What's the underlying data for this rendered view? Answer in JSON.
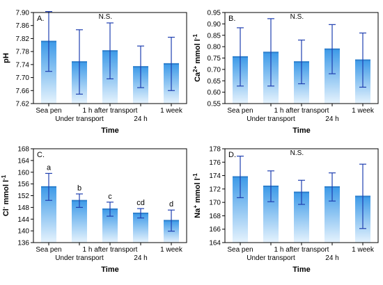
{
  "figure": {
    "x_categories": [
      "Sea pen",
      "Under transport",
      "1 h after transport",
      "24 h",
      "1 week"
    ],
    "xlabel": "Time"
  },
  "chart_data": [
    {
      "type": "bar",
      "panel_label": "A.",
      "annotation": "N.S.",
      "ylabel_main": "pH",
      "ylabel_sup": "",
      "ylabel_rest": "",
      "ylim": [
        7.62,
        7.9
      ],
      "yticks": [
        "7.62",
        "7.66",
        "7.70",
        "7.74",
        "7.78",
        "7.82",
        "7.86",
        "7.90"
      ],
      "categories": [
        "Sea pen",
        "Under transport",
        "1 h after transport",
        "24 h",
        "1 week"
      ],
      "values": [
        7.811,
        7.748,
        7.782,
        7.733,
        7.742
      ],
      "errors": [
        0.092,
        0.099,
        0.086,
        0.064,
        0.082
      ],
      "letters": []
    },
    {
      "type": "bar",
      "panel_label": "B.",
      "annotation": "N.S.",
      "ylabel_main": "Ca",
      "ylabel_sup": "2+",
      "ylabel_rest": " mmol l",
      "ylabel_sup2": "-1",
      "ylim": [
        0.55,
        0.95
      ],
      "yticks": [
        "0.55",
        "0.60",
        "0.65",
        "0.70",
        "0.75",
        "0.80",
        "0.85",
        "0.90",
        "0.95"
      ],
      "categories": [
        "Sea pen",
        "Under transport",
        "1 h after transport",
        "24 h",
        "1 week"
      ],
      "values": [
        0.755,
        0.775,
        0.733,
        0.789,
        0.741
      ],
      "errors": [
        0.128,
        0.148,
        0.096,
        0.108,
        0.119
      ],
      "letters": []
    },
    {
      "type": "bar",
      "panel_label": "C.",
      "annotation": "",
      "ylabel_main": "Cl",
      "ylabel_sup": "-",
      "ylabel_rest": " mmol l",
      "ylabel_sup2": "-1",
      "ylim": [
        136,
        168
      ],
      "yticks": [
        "136",
        "140",
        "144",
        "148",
        "152",
        "156",
        "160",
        "164",
        "168"
      ],
      "categories": [
        "Sea pen",
        "Under transport",
        "1 h after transport",
        "24 h",
        "1 week"
      ],
      "values": [
        155.0,
        150.3,
        147.4,
        146.0,
        143.5
      ],
      "errors": [
        4.6,
        2.3,
        2.4,
        1.6,
        3.6
      ],
      "letters": [
        "a",
        "b",
        "c",
        "cd",
        "d"
      ]
    },
    {
      "type": "bar",
      "panel_label": "D.",
      "annotation": "N.S.",
      "ylabel_main": "Na",
      "ylabel_sup": "+",
      "ylabel_rest": " mmol l",
      "ylabel_sup2": "-1",
      "ylim": [
        164,
        178
      ],
      "yticks": [
        "164",
        "166",
        "168",
        "170",
        "172",
        "174",
        "176",
        "178"
      ],
      "categories": [
        "Sea pen",
        "Under transport",
        "1 h after transport",
        "24 h",
        "1 week"
      ],
      "values": [
        173.8,
        172.4,
        171.5,
        172.3,
        170.9
      ],
      "errors": [
        3.1,
        2.3,
        1.8,
        2.1,
        4.8
      ],
      "letters": []
    }
  ]
}
